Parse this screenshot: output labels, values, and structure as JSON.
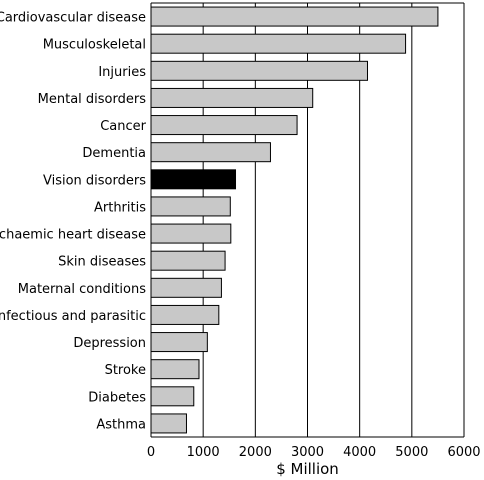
{
  "chart_data": {
    "type": "bar",
    "orientation": "horizontal",
    "categories": [
      "Cardiovascular disease",
      "Musculoskeletal",
      "Injuries",
      "Mental disorders",
      "Cancer",
      "Dementia",
      "Vision disorders",
      "Arthritis",
      "Ischaemic heart disease",
      "Skin diseases",
      "Maternal conditions",
      "Infectious and parasitic",
      "Depression",
      "Stroke",
      "Diabetes",
      "Asthma"
    ],
    "values": [
      5500,
      4880,
      4150,
      3100,
      2800,
      2290,
      1620,
      1520,
      1530,
      1420,
      1350,
      1300,
      1080,
      920,
      820,
      680
    ],
    "highlight_index": 6,
    "xlabel": "$ Million",
    "ylabel": "",
    "xlim": [
      0,
      6000
    ],
    "xticks": [
      0,
      1000,
      2000,
      3000,
      4000,
      5000,
      6000
    ],
    "grid": "vertical",
    "colors": {
      "bar": "#c8c8c8",
      "highlight": "#000000",
      "bar_edge": "#000000",
      "grid": "#000000"
    }
  }
}
